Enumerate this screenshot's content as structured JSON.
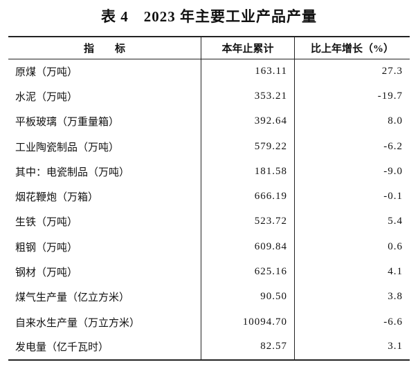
{
  "title": "表 4　2023 年主要工业产品产量",
  "table": {
    "header": [
      "指　　标",
      "本年止累计",
      "比上年增长（%）"
    ],
    "rows": [
      [
        "原煤（万吨）",
        "163.11",
        "27.3"
      ],
      [
        "水泥（万吨）",
        "353.21",
        "-19.7"
      ],
      [
        "平板玻璃（万重量箱）",
        "392.64",
        "8.0"
      ],
      [
        "工业陶瓷制品（万吨）",
        "579.22",
        "-6.2"
      ],
      [
        "其中：电瓷制品（万吨）",
        "181.58",
        "-9.0"
      ],
      [
        "烟花鞭炮（万箱）",
        "666.19",
        "-0.1"
      ],
      [
        "生铁（万吨）",
        "523.72",
        "5.4"
      ],
      [
        "粗钢（万吨）",
        "609.84",
        "0.6"
      ],
      [
        "钢材（万吨）",
        "625.16",
        "4.1"
      ],
      [
        "煤气生产量（亿立方米）",
        "90.50",
        "3.8"
      ],
      [
        "自来水生产量（万立方米）",
        "10094.70",
        "-6.6"
      ],
      [
        "发电量（亿千瓦时）",
        "82.57",
        "3.1"
      ]
    ]
  }
}
